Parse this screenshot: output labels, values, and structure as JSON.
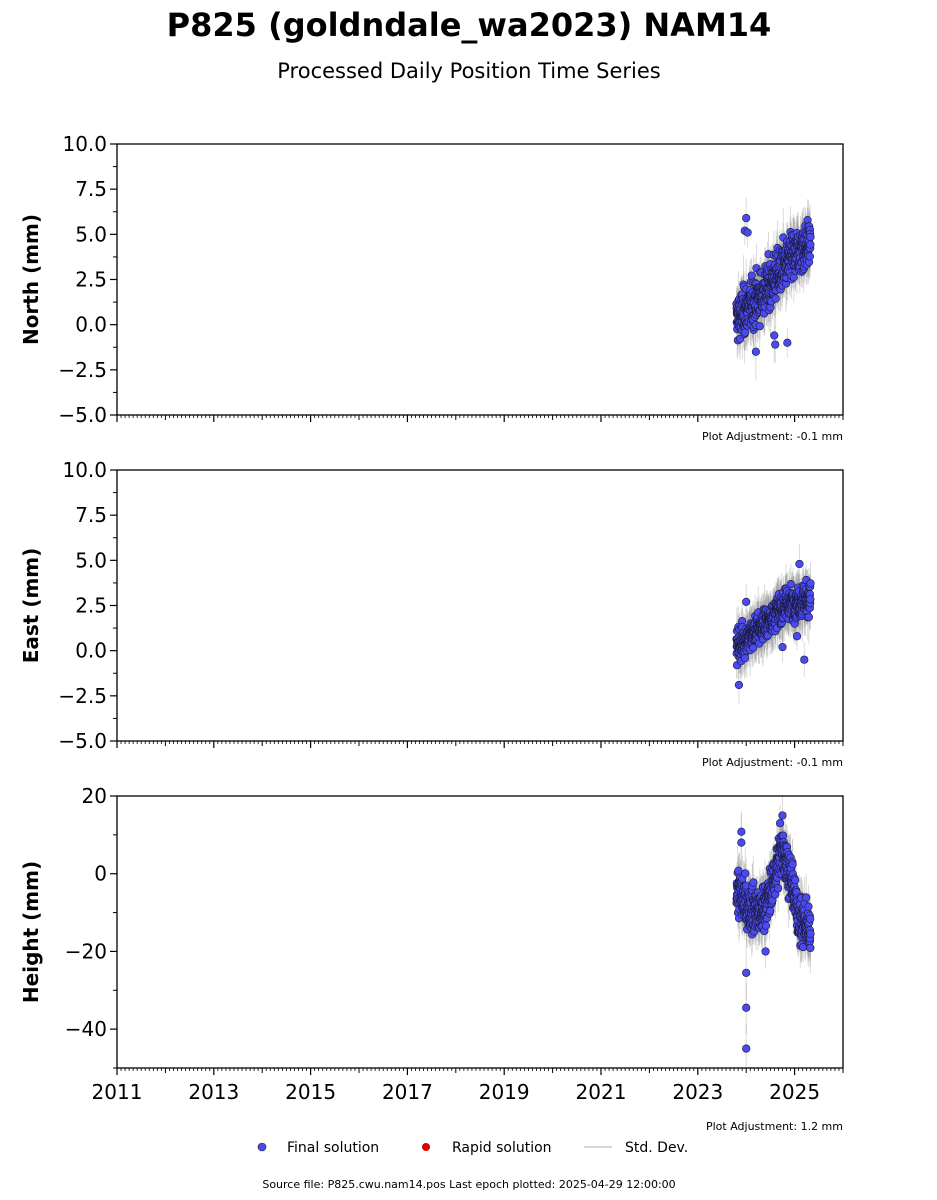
{
  "title": "P825 (goldndale_wa2023) NAM14",
  "subtitle": "Processed Daily Position Time Series",
  "legend": {
    "final": "Final solution",
    "rapid": "Rapid solution",
    "std": "Std. Dev."
  },
  "footer": "Source file: P825.cwu.nam14.pos  Last epoch plotted: 2025-04-29 12:00:00",
  "colors": {
    "final": "#4a4af0",
    "rapid": "#dd0000",
    "std": "#999999"
  },
  "chart_data": [
    {
      "type": "scatter",
      "ylabel": "North (mm)",
      "xlim": [
        2011,
        2026
      ],
      "ylim": [
        -5,
        10
      ],
      "yticks": [
        10.0,
        7.5,
        5.0,
        2.5,
        0.0,
        -2.5,
        -5.0
      ],
      "ytick_labels": [
        "10.0",
        "7.5",
        "5.0",
        "2.5",
        "0.0",
        "−2.5",
        "−5.0"
      ],
      "adjustment": "Plot Adjustment: -0.1 mm",
      "series": [
        {
          "name": "Final solution",
          "trend": [
            [
              2023.8,
              0.3
            ],
            [
              2024.3,
              1.6
            ],
            [
              2024.8,
              3.3
            ],
            [
              2025.33,
              4.6
            ]
          ],
          "outliers": [
            [
              2023.97,
              5.2
            ],
            [
              2024.0,
              5.9
            ],
            [
              2024.03,
              5.1
            ],
            [
              2024.2,
              -1.5
            ],
            [
              2024.6,
              -1.1
            ],
            [
              2024.58,
              -0.6
            ],
            [
              2024.85,
              -1.0
            ]
          ],
          "scatter_sd": 0.9,
          "std_dev": 1.1
        }
      ]
    },
    {
      "type": "scatter",
      "ylabel": "East (mm)",
      "xlim": [
        2011,
        2026
      ],
      "ylim": [
        -5,
        10
      ],
      "yticks": [
        10.0,
        7.5,
        5.0,
        2.5,
        0.0,
        -2.5,
        -5.0
      ],
      "ytick_labels": [
        "10.0",
        "7.5",
        "5.0",
        "2.5",
        "0.0",
        "−2.5",
        "−5.0"
      ],
      "adjustment": "Plot Adjustment: -0.1 mm",
      "series": [
        {
          "name": "Final solution",
          "trend": [
            [
              2023.8,
              0.2
            ],
            [
              2024.3,
              1.3
            ],
            [
              2024.8,
              2.5
            ],
            [
              2025.33,
              2.9
            ]
          ],
          "outliers": [
            [
              2023.85,
              -1.9
            ],
            [
              2024.0,
              2.7
            ],
            [
              2024.75,
              0.2
            ],
            [
              2025.1,
              4.8
            ],
            [
              2025.2,
              -0.5
            ],
            [
              2025.05,
              0.8
            ]
          ],
          "scatter_sd": 0.6,
          "std_dev": 1.0
        }
      ]
    },
    {
      "type": "scatter",
      "ylabel": "Height (mm)",
      "xlim": [
        2011,
        2026
      ],
      "ylim": [
        -50,
        20
      ],
      "yticks": [
        20,
        0,
        -20,
        -40
      ],
      "ytick_labels": [
        "20",
        "0",
        "−20",
        "−40"
      ],
      "xticks": [
        2011,
        2013,
        2015,
        2017,
        2019,
        2021,
        2023,
        2025
      ],
      "xtick_labels": [
        "2011",
        "2013",
        "2015",
        "2017",
        "2019",
        "2021",
        "2023",
        "2025"
      ],
      "adjustment": "Plot Adjustment: 1.2 mm",
      "series": [
        {
          "name": "Final solution",
          "trend": [
            [
              2023.8,
              -4
            ],
            [
              2024.0,
              -8
            ],
            [
              2024.3,
              -10
            ],
            [
              2024.5,
              -5
            ],
            [
              2024.75,
              7
            ],
            [
              2024.9,
              0
            ],
            [
              2025.1,
              -12
            ],
            [
              2025.33,
              -14
            ]
          ],
          "outliers": [
            [
              2023.9,
              10.8
            ],
            [
              2023.9,
              8
            ],
            [
              2024.0,
              -25.5
            ],
            [
              2024.0,
              -34.5
            ],
            [
              2024.0,
              -45
            ],
            [
              2024.75,
              15
            ],
            [
              2024.7,
              13
            ],
            [
              2024.4,
              -20
            ]
          ],
          "scatter_sd": 4.0,
          "std_dev": 5.0
        }
      ]
    }
  ]
}
